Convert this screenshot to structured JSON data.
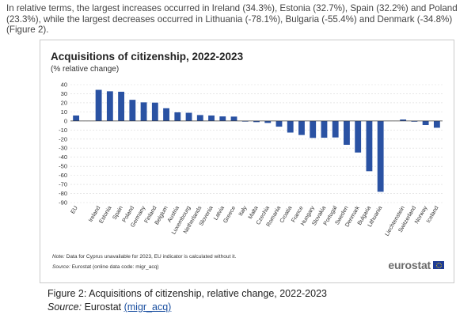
{
  "intro_text": "In relative terms, the largest increases occurred in Ireland (34.3%), Estonia (32.7%), Spain (32.2%) and Poland (23.3%), while the largest decreases occurred in Lithuania (-78.1%), Bulgaria (-55.4%) and Denmark (-34.8%) (Figure 2).",
  "note": {
    "label": "Note:",
    "text": " Data for Cyprus unavailable  for 2023, EU indicator is calculated without it."
  },
  "source_inner": {
    "label": "Source:",
    "text": " Eurostat (online data code: migr_acq)"
  },
  "logo_text": "eurostat",
  "caption": {
    "title": "Figure 2: Acquisitions of citizenship, relative change, 2022-2023",
    "source_label": "Source:",
    "source_prefix": " Eurostat ",
    "source_link": "(migr_acq)"
  },
  "colors": {
    "bar": "#2a52a3",
    "grid": "#d9d9d9",
    "axis": "#333333"
  },
  "chart_data": {
    "type": "bar",
    "title": "Acquisitions of citizenship, 2022-2023",
    "subtitle": "(% relative change)",
    "xlabel": "",
    "ylabel": "",
    "ylim": [
      -90,
      40
    ],
    "yticks": [
      40,
      30,
      20,
      10,
      0,
      -10,
      -20,
      -30,
      -40,
      -50,
      -60,
      -70,
      -80,
      -90
    ],
    "grid": true,
    "legend": "none",
    "categories": [
      "EU",
      "",
      "Ireland",
      "Estonia",
      "Spain",
      "Poland",
      "Germany",
      "Finland",
      "Belgium",
      "Austria",
      "Luxembourg",
      "Netherlands",
      "Slovenia",
      "Latvia",
      "Greece",
      "Italy",
      "Malta",
      "Czechia",
      "Romania",
      "Croatia",
      "France",
      "Hungary",
      "Slovakia",
      "Portugal",
      "Sweden",
      "Denmark",
      "Bulgaria",
      "Lithuania",
      "",
      "Liechtenstein",
      "Switzerland",
      "Norway",
      "Iceland"
    ],
    "values": [
      6,
      null,
      34.3,
      32.7,
      32.2,
      23.3,
      20.5,
      20.2,
      14,
      9.5,
      9,
      6.5,
      6,
      5,
      4.8,
      -0.4,
      -1.3,
      -2.2,
      -6.3,
      -12.8,
      -15.5,
      -18.7,
      -18.5,
      -18.2,
      -26.3,
      -34.8,
      -55.4,
      -78.1,
      null,
      1.6,
      -0.8,
      -4.5,
      -7.5
    ]
  }
}
